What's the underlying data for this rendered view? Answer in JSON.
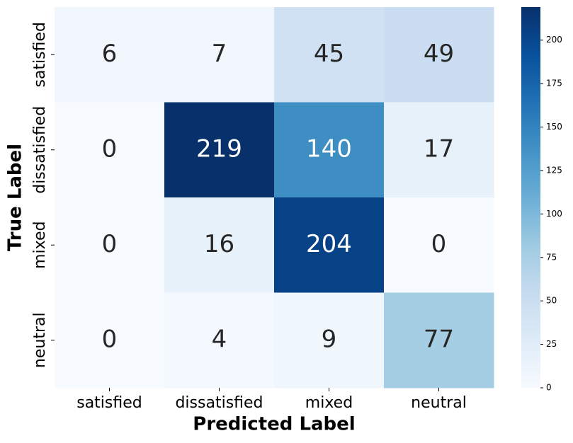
{
  "chart_data": {
    "type": "heatmap",
    "x_categories": [
      "satisfied",
      "dissatisfied",
      "mixed",
      "neutral"
    ],
    "y_categories": [
      "satisfied",
      "dissatisfied",
      "mixed",
      "neutral"
    ],
    "values": [
      [
        6,
        7,
        45,
        49
      ],
      [
        0,
        219,
        140,
        17
      ],
      [
        0,
        16,
        204,
        0
      ],
      [
        0,
        4,
        9,
        77
      ]
    ],
    "xlabel": "Predicted Label",
    "ylabel": "True Label",
    "colormap": [
      "#f7fbff",
      "#deebf7",
      "#c6dbef",
      "#9ecae1",
      "#6baed6",
      "#4292c6",
      "#2171b5",
      "#08519c",
      "#08306b"
    ],
    "clim": [
      0,
      219
    ],
    "cticks": [
      0,
      25,
      50,
      75,
      100,
      125,
      150,
      175,
      200
    ]
  }
}
